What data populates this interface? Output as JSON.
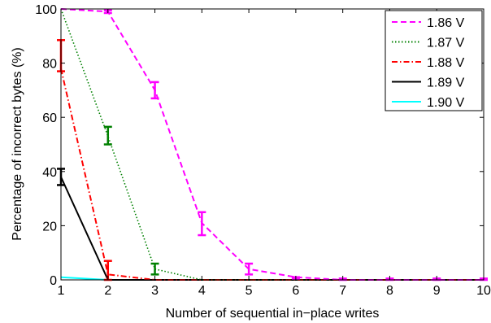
{
  "chart_data": {
    "type": "line",
    "title": "",
    "xlabel": "Number of sequential in−place writes",
    "ylabel": "Percentage of incorrect bytes (%)",
    "xlim": [
      1,
      10
    ],
    "ylim": [
      0,
      100
    ],
    "x": [
      1,
      2,
      3,
      4,
      5,
      6,
      7,
      8,
      9,
      10
    ],
    "xticks": [
      "1",
      "2",
      "3",
      "4",
      "5",
      "6",
      "7",
      "8",
      "9",
      "10"
    ],
    "yticks": [
      "0",
      "20",
      "40",
      "60",
      "80",
      "100"
    ],
    "grid": false,
    "legend_position": "top-right",
    "series": [
      {
        "name": "1.86 V",
        "color": "#ff00ff",
        "style": "dashed",
        "values": [
          100,
          99,
          70,
          21,
          4,
          1,
          0,
          0,
          0,
          0
        ],
        "error_low": [
          null,
          98.5,
          67,
          16.5,
          2,
          0.5,
          0,
          0,
          0,
          0
        ],
        "error_high": [
          null,
          99.5,
          73,
          25,
          6,
          1,
          0.5,
          0.5,
          0.5,
          0.5
        ]
      },
      {
        "name": "1.87 V",
        "color": "#008000",
        "style": "dotted",
        "values": [
          100,
          53,
          4,
          0,
          0,
          0,
          0,
          0,
          0,
          0
        ],
        "error_low": [
          null,
          50,
          2,
          null,
          null,
          null,
          null,
          null,
          null,
          null
        ],
        "error_high": [
          null,
          56.5,
          6,
          null,
          null,
          null,
          null,
          null,
          null,
          null
        ]
      },
      {
        "name": "1.88 V",
        "color": "#ff0000",
        "style": "dashdot",
        "values": [
          78,
          2,
          0,
          0,
          0,
          0,
          0,
          0,
          0,
          0
        ],
        "error_low": [
          77,
          0,
          null,
          null,
          null,
          null,
          null,
          null,
          null,
          null
        ],
        "error_high": [
          88.5,
          7,
          null,
          null,
          null,
          null,
          null,
          null,
          null,
          null
        ]
      },
      {
        "name": "1.89 V",
        "color": "#000000",
        "style": "solid",
        "values": [
          38,
          0,
          0,
          0,
          0,
          0,
          0,
          0,
          0,
          0
        ],
        "error_low": [
          35,
          null,
          null,
          null,
          null,
          null,
          null,
          null,
          null,
          null
        ],
        "error_high": [
          41,
          null,
          null,
          null,
          null,
          null,
          null,
          null,
          null,
          null
        ]
      },
      {
        "name": "1.90 V",
        "color": "#00ffff",
        "style": "solid",
        "values": [
          1,
          0,
          0,
          0,
          0,
          0,
          0,
          0,
          0,
          0
        ],
        "error_low": [
          null,
          null,
          null,
          null,
          null,
          null,
          null,
          null,
          null,
          null
        ],
        "error_high": [
          null,
          null,
          null,
          null,
          null,
          null,
          null,
          null,
          null,
          null
        ]
      }
    ]
  }
}
